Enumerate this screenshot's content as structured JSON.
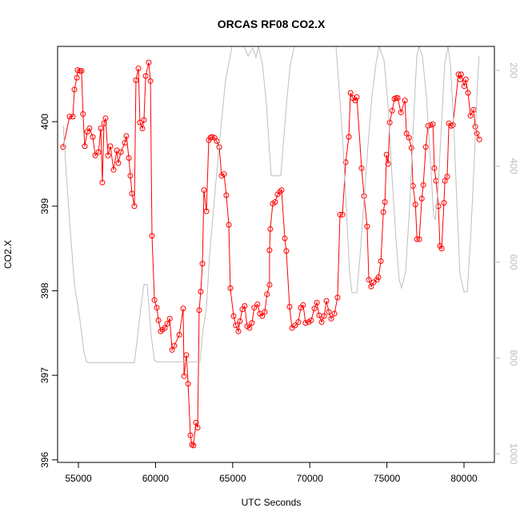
{
  "chart_data": {
    "type": "line",
    "title": "ORCAS RF08 CO2.X",
    "xlabel": "UTC Seconds",
    "ylabel": "CO2.X",
    "xlim": [
      53650,
      81970
    ],
    "xticks": [
      55000,
      60000,
      65000,
      70000,
      75000,
      80000
    ],
    "ylim": [
      395.97,
      400.89
    ],
    "yticks": [
      396,
      397,
      398,
      399,
      400
    ],
    "y2lim": [
      1018,
      150
    ],
    "y2ticks": [
      200,
      400,
      600,
      800,
      1000
    ],
    "series": [
      {
        "color": "#ff0000",
        "marker": "circle",
        "x": [
          54010,
          54425,
          54640,
          54740,
          54900,
          54950,
          55100,
          55200,
          55300,
          55410,
          55570,
          55720,
          55930,
          56090,
          56300,
          56450,
          56550,
          56660,
          56760,
          56920,
          57070,
          57280,
          57490,
          57590,
          57750,
          58010,
          58110,
          58270,
          58370,
          58470,
          58630,
          58730,
          58890,
          58990,
          59150,
          59250,
          59360,
          59560,
          59670,
          59770,
          59930,
          60080,
          60190,
          60340,
          60450,
          60600,
          60760,
          60920,
          61070,
          61220,
          61540,
          61790,
          61850,
          62000,
          62110,
          62260,
          62360,
          62460,
          62620,
          62730,
          62830,
          62930,
          63040,
          63140,
          63300,
          63450,
          63560,
          63660,
          63820,
          63970,
          64130,
          64280,
          64440,
          64590,
          64750,
          64850,
          65060,
          65210,
          65370,
          65470,
          65630,
          65780,
          65940,
          66090,
          66250,
          66400,
          66610,
          66770,
          66920,
          67080,
          67230,
          67390,
          67390,
          67440,
          67600,
          67750,
          67910,
          68060,
          68170,
          68380,
          68480,
          68690,
          68850,
          69050,
          69260,
          69420,
          69570,
          69730,
          69930,
          70090,
          70300,
          70460,
          70610,
          70770,
          70930,
          71080,
          71240,
          71390,
          71600,
          71800,
          71960,
          72120,
          72330,
          72530,
          72640,
          72790,
          72950,
          73050,
          73360,
          73520,
          73720,
          73830,
          73980,
          74140,
          74350,
          74450,
          74610,
          74770,
          74870,
          74980,
          75080,
          75180,
          75340,
          75490,
          75600,
          75700,
          75910,
          76170,
          76270,
          76430,
          76590,
          76690,
          76850,
          76950,
          77100,
          77260,
          77360,
          77520,
          77670,
          77830,
          77980,
          78080,
          78190,
          78340,
          78440,
          78550,
          78700,
          78760,
          78910,
          79020,
          79170,
          79280,
          79640,
          79750,
          79810,
          80010,
          80120,
          80260,
          80420,
          80620,
          80730,
          80830,
          80990
        ],
        "values": [
          399.7,
          400.06,
          400.06,
          400.38,
          400.52,
          400.61,
          400.6,
          400.6,
          400.09,
          399.71,
          399.88,
          399.92,
          399.82,
          399.6,
          399.64,
          399.92,
          399.28,
          399.98,
          400.04,
          399.6,
          399.71,
          399.43,
          399.66,
          399.51,
          399.64,
          399.75,
          399.83,
          399.57,
          399.36,
          399.15,
          399.0,
          400.49,
          400.63,
          399.99,
          399.92,
          400.02,
          400.54,
          400.7,
          400.48,
          398.65,
          397.89,
          397.8,
          397.65,
          397.52,
          397.54,
          397.56,
          397.61,
          397.67,
          397.3,
          397.35,
          397.48,
          397.79,
          396.99,
          397.24,
          396.9,
          396.29,
          396.18,
          396.17,
          396.44,
          396.38,
          397.77,
          397.99,
          398.32,
          399.19,
          398.94,
          399.78,
          399.81,
          399.82,
          399.81,
          399.77,
          399.7,
          399.36,
          399.38,
          399.13,
          398.78,
          398.03,
          397.7,
          397.59,
          397.52,
          397.64,
          397.78,
          397.82,
          397.58,
          397.56,
          397.62,
          397.8,
          397.84,
          397.73,
          397.7,
          397.75,
          397.96,
          398.07,
          398.48,
          398.73,
          399.03,
          399.05,
          399.14,
          399.17,
          399.19,
          398.62,
          398.47,
          397.81,
          397.56,
          397.59,
          397.63,
          397.8,
          397.83,
          397.62,
          397.63,
          397.65,
          397.79,
          397.86,
          397.71,
          397.63,
          397.7,
          397.88,
          397.75,
          397.67,
          397.73,
          397.92,
          398.9,
          398.9,
          399.52,
          399.82,
          400.34,
          400.28,
          400.25,
          400.29,
          399.45,
          399.12,
          398.76,
          398.13,
          398.05,
          398.1,
          398.13,
          398.16,
          398.35,
          398.93,
          399.05,
          399.61,
          399.5,
          399.99,
          400.13,
          400.27,
          400.28,
          400.28,
          400.11,
          400.25,
          399.86,
          399.81,
          399.69,
          399.24,
          399.02,
          398.61,
          398.61,
          399.09,
          399.25,
          399.7,
          399.95,
          399.96,
          399.97,
          399.45,
          399.3,
          399.0,
          398.53,
          398.5,
          399.04,
          399.3,
          399.35,
          399.98,
          399.95,
          399.96,
          400.56,
          400.5,
          400.56,
          400.42,
          400.5,
          400.34,
          400.07,
          400.14,
          399.94,
          399.86,
          399.79
        ]
      },
      {
        "color": "#bebebe",
        "axis": "y2",
        "x": [
          54013,
          54220,
          54480,
          54740,
          55100,
          55360,
          55520,
          55720,
          58630,
          58840,
          59040,
          59250,
          59460,
          59560,
          59720,
          59930,
          60080,
          62880,
          63090,
          63300,
          63500,
          63810,
          64180,
          64540,
          64960,
          65740,
          66000,
          66310,
          66510,
          66670,
          66930,
          67190,
          67390,
          67500,
          68120,
          68280,
          68540,
          68740,
          69000,
          71700,
          71860,
          72120,
          72370,
          72580,
          72740,
          73050,
          73260,
          73520,
          73780,
          74030,
          74290,
          74500,
          74810,
          75070,
          75330,
          75590,
          75800,
          75950,
          76210,
          76470,
          76730,
          76940,
          77090,
          77300,
          77560,
          77820,
          78030,
          78130,
          78340,
          78550,
          78750,
          78960,
          79120,
          79320,
          79530,
          79740,
          80000,
          80210,
          80420,
          80670,
          80880,
          80980
        ],
        "values": [
          315,
          420,
          537,
          646,
          721,
          788,
          808,
          810,
          810,
          754,
          696,
          647,
          647,
          688,
          754,
          805,
          808,
          808,
          738,
          696,
          587,
          470,
          337,
          220,
          150,
          150,
          170,
          153,
          173,
          150,
          187,
          270,
          370,
          420,
          420,
          354,
          253,
          187,
          150,
          150,
          220,
          337,
          487,
          621,
          664,
          664,
          587,
          470,
          354,
          253,
          187,
          150,
          178,
          270,
          420,
          554,
          637,
          654,
          621,
          487,
          304,
          170,
          150,
          170,
          253,
          387,
          504,
          512,
          437,
          304,
          187,
          150,
          187,
          304,
          470,
          626,
          662,
          662,
          554,
          387,
          220,
          170
        ]
      }
    ]
  }
}
